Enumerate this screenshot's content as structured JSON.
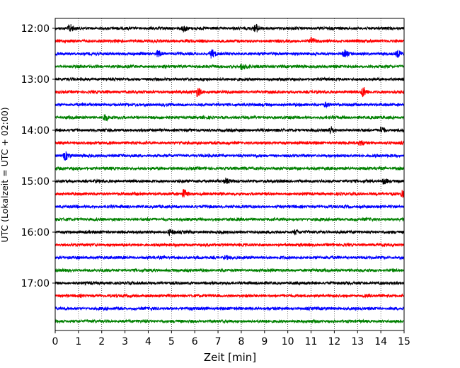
{
  "chart_data": {
    "type": "line",
    "title": "",
    "xlabel": "Zeit  [min]",
    "ylabel": "UTC (Lokalzeit = UTC + 02:00)",
    "xlim": [
      0,
      15
    ],
    "x_ticks": [
      "0",
      "1",
      "2",
      "3",
      "4",
      "5",
      "6",
      "7",
      "8",
      "9",
      "10",
      "11",
      "12",
      "13",
      "14",
      "15"
    ],
    "y_tick_labels": [
      "12:00",
      "13:00",
      "14:00",
      "15:00",
      "16:00",
      "17:00"
    ],
    "grid": "vertical dotted lines at each minute",
    "trace_interval_minutes": 15,
    "trace_start_times": [
      "12:00",
      "12:15",
      "12:30",
      "12:45",
      "13:00",
      "13:15",
      "13:30",
      "13:45",
      "14:00",
      "14:15",
      "14:30",
      "14:45",
      "15:00",
      "15:15",
      "15:30",
      "15:45",
      "16:00",
      "16:15",
      "16:30",
      "16:45",
      "17:00",
      "17:15",
      "17:30",
      "17:45"
    ],
    "trace_colors": [
      "#000000",
      "#ff0000",
      "#0000ff",
      "#008000"
    ],
    "events": [
      {
        "trace": 0,
        "minute": 0.6,
        "strength": 0.9
      },
      {
        "trace": 0,
        "minute": 5.5,
        "strength": 0.8
      },
      {
        "trace": 0,
        "minute": 8.6,
        "strength": 0.9
      },
      {
        "trace": 1,
        "minute": 11.0,
        "strength": 0.7
      },
      {
        "trace": 2,
        "minute": 4.4,
        "strength": 0.8
      },
      {
        "trace": 2,
        "minute": 6.7,
        "strength": 0.9
      },
      {
        "trace": 2,
        "minute": 12.4,
        "strength": 0.7
      },
      {
        "trace": 2,
        "minute": 14.7,
        "strength": 0.7
      },
      {
        "trace": 3,
        "minute": 8.0,
        "strength": 0.8
      },
      {
        "trace": 5,
        "minute": 6.1,
        "strength": 1.0
      },
      {
        "trace": 5,
        "minute": 13.2,
        "strength": 1.1
      },
      {
        "trace": 6,
        "minute": 11.6,
        "strength": 0.6
      },
      {
        "trace": 7,
        "minute": 2.1,
        "strength": 0.8
      },
      {
        "trace": 8,
        "minute": 11.8,
        "strength": 0.8
      },
      {
        "trace": 8,
        "minute": 14.0,
        "strength": 0.8
      },
      {
        "trace": 9,
        "minute": 13.1,
        "strength": 0.6
      },
      {
        "trace": 10,
        "minute": 0.4,
        "strength": 1.0
      },
      {
        "trace": 12,
        "minute": 7.3,
        "strength": 0.6
      },
      {
        "trace": 12,
        "minute": 14.1,
        "strength": 0.6
      },
      {
        "trace": 13,
        "minute": 5.5,
        "strength": 1.0
      },
      {
        "trace": 13,
        "minute": 14.9,
        "strength": 0.7
      },
      {
        "trace": 16,
        "minute": 4.9,
        "strength": 0.5
      },
      {
        "trace": 16,
        "minute": 10.3,
        "strength": 0.5
      },
      {
        "trace": 18,
        "minute": 7.3,
        "strength": 0.4
      }
    ]
  }
}
